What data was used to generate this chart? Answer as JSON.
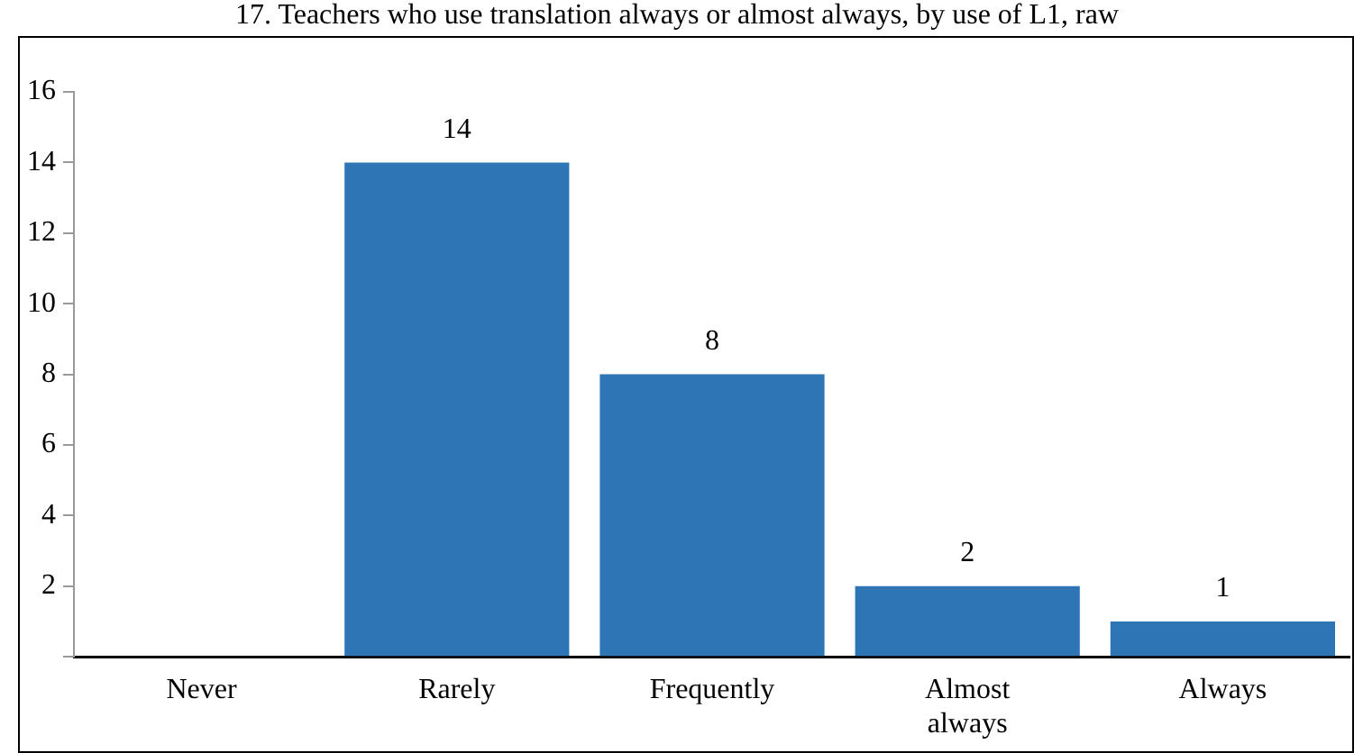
{
  "chart_data": {
    "type": "bar",
    "title": "17. Teachers who use translation always or almost always, by use of L1, raw",
    "categories": [
      "Never",
      "Rarely",
      "Frequently",
      "Almost always",
      "Always"
    ],
    "values": [
      0,
      14,
      8,
      2,
      1
    ],
    "value_labels": [
      null,
      "14",
      "8",
      "2",
      "1"
    ],
    "color": "#2e75b6",
    "ylim": [
      0,
      16
    ],
    "yticks": [
      {
        "value": 0,
        "label": null
      },
      2,
      4,
      6,
      8,
      10,
      12,
      14,
      16
    ],
    "grid": false,
    "legend": false
  }
}
